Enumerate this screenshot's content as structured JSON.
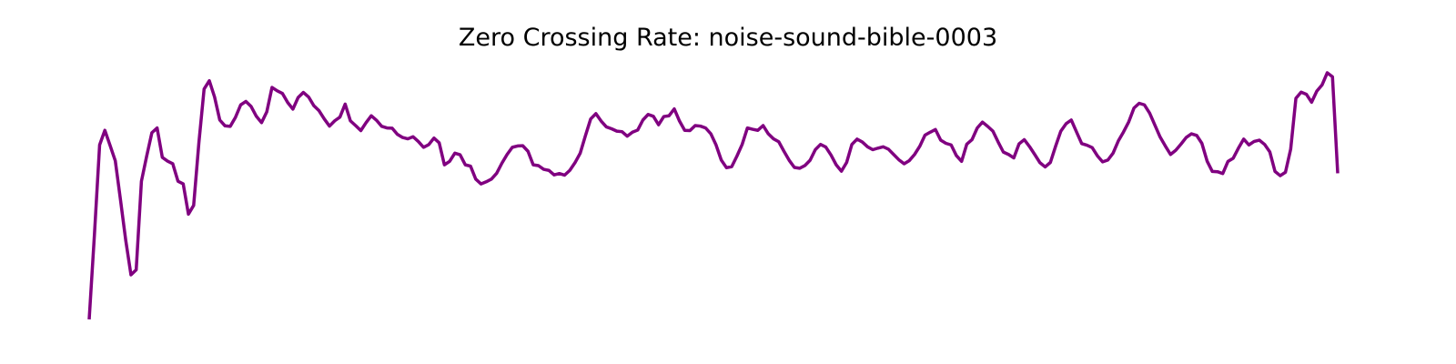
{
  "chart_data": {
    "type": "line",
    "title": "Zero Crossing Rate: noise-sound-bible-0003",
    "xlabel": "",
    "ylabel": "",
    "axes_visible": false,
    "grid": false,
    "line_color": "#800080",
    "series": [
      {
        "values": [
          0.0,
          0.318,
          0.658,
          0.713,
          0.656,
          0.598,
          0.45,
          0.298,
          0.168,
          0.187,
          0.521,
          0.615,
          0.704,
          0.722,
          0.611,
          0.597,
          0.587,
          0.521,
          0.511,
          0.397,
          0.43,
          0.666,
          0.869,
          0.9,
          0.839,
          0.752,
          0.73,
          0.728,
          0.762,
          0.809,
          0.822,
          0.803,
          0.766,
          0.742,
          0.783,
          0.875,
          0.862,
          0.852,
          0.818,
          0.793,
          0.837,
          0.856,
          0.839,
          0.806,
          0.787,
          0.756,
          0.729,
          0.749,
          0.763,
          0.812,
          0.749,
          0.731,
          0.712,
          0.742,
          0.768,
          0.751,
          0.728,
          0.722,
          0.721,
          0.698,
          0.686,
          0.681,
          0.689,
          0.671,
          0.649,
          0.659,
          0.684,
          0.666,
          0.583,
          0.596,
          0.627,
          0.621,
          0.583,
          0.578,
          0.529,
          0.511,
          0.519,
          0.529,
          0.551,
          0.589,
          0.622,
          0.649,
          0.654,
          0.655,
          0.634,
          0.583,
          0.58,
          0.566,
          0.562,
          0.545,
          0.55,
          0.544,
          0.562,
          0.591,
          0.627,
          0.693,
          0.756,
          0.776,
          0.748,
          0.726,
          0.719,
          0.71,
          0.708,
          0.691,
          0.706,
          0.714,
          0.752,
          0.773,
          0.766,
          0.734,
          0.765,
          0.768,
          0.794,
          0.748,
          0.713,
          0.712,
          0.731,
          0.729,
          0.722,
          0.7,
          0.658,
          0.601,
          0.572,
          0.576,
          0.616,
          0.66,
          0.722,
          0.717,
          0.713,
          0.731,
          0.7,
          0.681,
          0.67,
          0.634,
          0.6,
          0.573,
          0.57,
          0.58,
          0.6,
          0.64,
          0.66,
          0.65,
          0.62,
          0.583,
          0.559,
          0.592,
          0.66,
          0.68,
          0.669,
          0.651,
          0.64,
          0.646,
          0.651,
          0.642,
          0.622,
          0.602,
          0.587,
          0.599,
          0.622,
          0.653,
          0.695,
          0.706,
          0.716,
          0.676,
          0.664,
          0.658,
          0.618,
          0.596,
          0.661,
          0.678,
          0.722,
          0.744,
          0.728,
          0.71,
          0.669,
          0.631,
          0.622,
          0.609,
          0.662,
          0.678,
          0.652,
          0.622,
          0.591,
          0.575,
          0.592,
          0.653,
          0.71,
          0.738,
          0.752,
          0.707,
          0.663,
          0.657,
          0.648,
          0.617,
          0.594,
          0.601,
          0.627,
          0.673,
          0.707,
          0.745,
          0.797,
          0.815,
          0.809,
          0.778,
          0.733,
          0.688,
          0.654,
          0.622,
          0.638,
          0.661,
          0.686,
          0.7,
          0.694,
          0.664,
          0.597,
          0.558,
          0.557,
          0.55,
          0.596,
          0.608,
          0.646,
          0.68,
          0.658,
          0.671,
          0.676,
          0.66,
          0.632,
          0.558,
          0.542,
          0.555,
          0.642,
          0.834,
          0.857,
          0.849,
          0.819,
          0.861,
          0.884,
          0.93,
          0.915,
          0.551
        ]
      }
    ]
  }
}
